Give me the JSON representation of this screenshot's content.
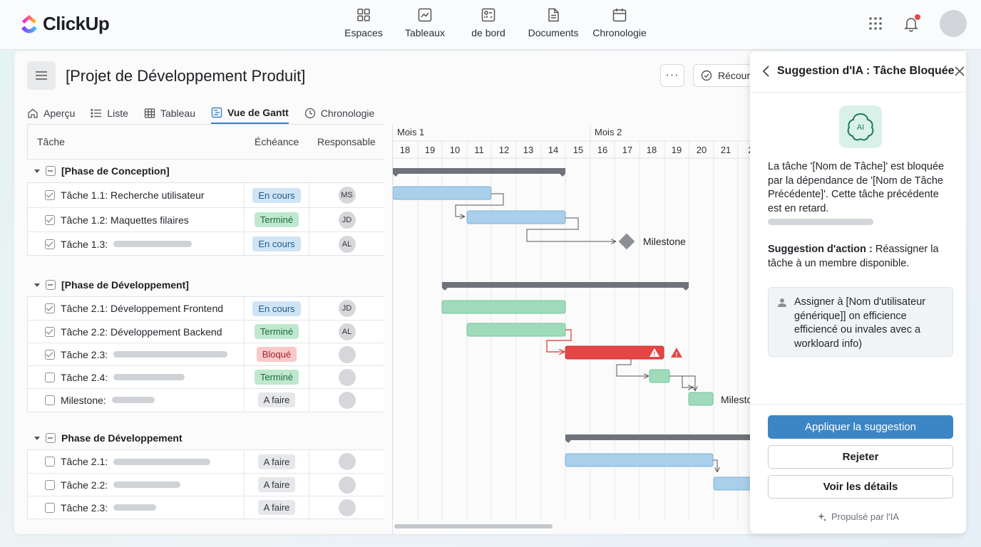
{
  "app": {
    "name": "ClickUp",
    "brand_colors": [
      "#7b68ee",
      "#ff4fa3",
      "#ffb800",
      "#49ccf9"
    ]
  },
  "topnav": [
    {
      "label": "Espaces",
      "icon": "grid-icon"
    },
    {
      "label": "Tableaux",
      "icon": "chart-icon"
    },
    {
      "label": "de bord",
      "icon": "dashboard-icon"
    },
    {
      "label": "Documents",
      "icon": "document-icon"
    },
    {
      "label": "Chronologie",
      "icon": "calendar-icon"
    }
  ],
  "project": {
    "title": "[Projet de Développement Produit]",
    "more_label": "···",
    "recur_label": "Récour"
  },
  "tabs": [
    {
      "label": "Aperçu",
      "icon": "home-icon",
      "active": false
    },
    {
      "label": "Liste",
      "icon": "list-icon",
      "active": false
    },
    {
      "label": "Tableau",
      "icon": "table-icon",
      "active": false
    },
    {
      "label": "Vue de Gantt",
      "icon": "gantt-icon",
      "active": true
    },
    {
      "label": "Chronologie",
      "icon": "clock-icon",
      "active": false
    }
  ],
  "table": {
    "headers": {
      "task": "Tâche",
      "due": "Échéance",
      "owner": "Responsable"
    },
    "phases": [
      {
        "title": "[Phase de Conception]",
        "rows": [
          {
            "label": "Tâche 1.1: Recherche utilisateur",
            "status": "En cours",
            "owner": "MS",
            "checked": true
          },
          {
            "label": "Tâche 1.2: Maquettes filaires",
            "status": "Terminé",
            "owner": "JD",
            "checked": true
          },
          {
            "label": "Tâche 1.3:",
            "status": "En cours",
            "owner": "AL",
            "checked": true
          }
        ]
      },
      {
        "title": "[Phase de Développement]",
        "rows": [
          {
            "label": "Tâche 2.1: Développement Frontend",
            "status": "En cours",
            "owner": "JD",
            "checked": true
          },
          {
            "label": "Tâche 2.2: Développement Backend",
            "status": "Terminé",
            "owner": "AL",
            "checked": true
          },
          {
            "label": "Tâche 2.3:",
            "status": "Bloqué",
            "owner": "",
            "checked": true
          },
          {
            "label": "Tâche 2.4:",
            "status": "Terminé",
            "owner": "",
            "checked": false
          },
          {
            "label": "Milestone:",
            "status": "A faire",
            "owner": "",
            "checked": false
          }
        ]
      },
      {
        "title": "Phase de Développement",
        "rows": [
          {
            "label": "Tâche 2.1:",
            "status": "A faire",
            "owner": "",
            "checked": false
          },
          {
            "label": "Tâche 2.2:",
            "status": "A faire",
            "owner": "",
            "checked": false
          },
          {
            "label": "Tâche 2.3:",
            "status": "A faire",
            "owner": "",
            "checked": false
          }
        ]
      }
    ]
  },
  "gantt": {
    "months": [
      "Mois 1",
      "Mois 2"
    ],
    "days": [
      "18",
      "19",
      "10",
      "11",
      "12",
      "13",
      "14",
      "15",
      "16",
      "17",
      "18",
      "19",
      "20",
      "21",
      "2"
    ],
    "milestone_labels": [
      "Milestone",
      "Milestc"
    ],
    "colors": {
      "blue": "#a9cfea",
      "green": "#9fdbbb",
      "red": "#e64545",
      "phase": "#6f7379"
    }
  },
  "panel": {
    "title": "Suggestion d'IA : Tâche Bloquée",
    "message": "La tâche '[Nom de Tâche]' est bloquée par la dépendance de '[Nom de Tâche Précédente]'. Cette tâche précédente est en retard.",
    "action_label": "Suggestion d'action :",
    "action_text": "Réassigner la tâche à un membre disponible.",
    "assign_text": "Assigner à [Nom d'utilisateur générique]] on efficience efficiencé ou invales avec a workloard info)",
    "apply_label": "Appliquer la suggestion",
    "reject_label": "Rejeter",
    "details_label": "Voir les détails",
    "powered_label": "Propulsé par l'IA"
  }
}
